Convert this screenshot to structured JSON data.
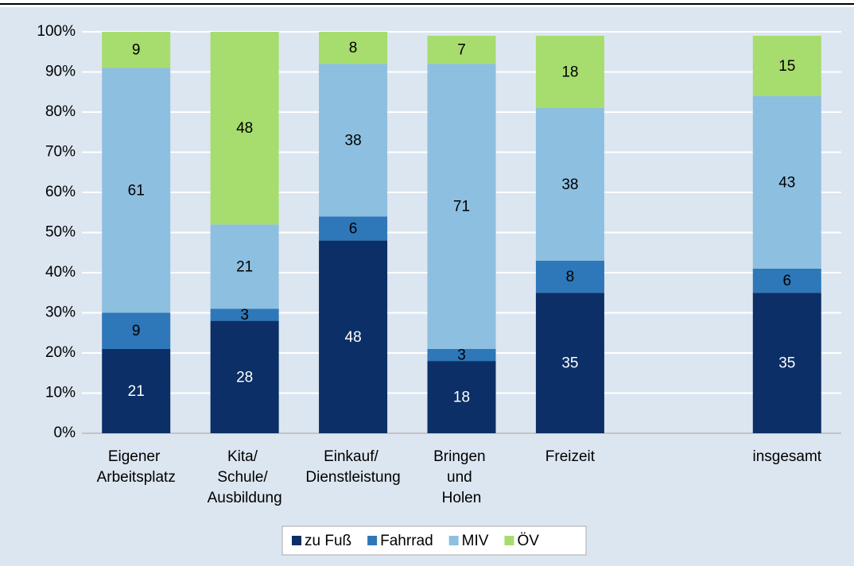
{
  "chart_data": {
    "type": "stacked_bar",
    "categories": [
      "Eigener Arbeitsplatz",
      "Kita/ Schule/ Ausbildung",
      "Einkauf/ Dienstleistung",
      "Bringen und Holen",
      "Freizeit",
      null,
      "insgesamt"
    ],
    "series": [
      {
        "name": "zu Fuß",
        "color": "#0b2f66",
        "values": [
          21,
          28,
          48,
          18,
          35,
          null,
          35
        ]
      },
      {
        "name": "Fahrrad",
        "color": "#2e77b8",
        "values": [
          9,
          3,
          6,
          3,
          8,
          null,
          6
        ]
      },
      {
        "name": "MIV",
        "color": "#8dbfe0",
        "values": [
          61,
          21,
          38,
          71,
          38,
          null,
          43
        ]
      },
      {
        "name": "ÖV",
        "color": "#a7dc6e",
        "values": [
          9,
          48,
          8,
          7,
          18,
          null,
          15
        ]
      }
    ],
    "ylim": [
      0,
      100
    ],
    "yticks": [
      {
        "value": 0,
        "label": "0%"
      },
      {
        "value": 10,
        "label": "10%"
      },
      {
        "value": 20,
        "label": "20%"
      },
      {
        "value": 30,
        "label": "30%"
      },
      {
        "value": 40,
        "label": "40%"
      },
      {
        "value": 50,
        "label": "50%"
      },
      {
        "value": 60,
        "label": "60%"
      },
      {
        "value": 70,
        "label": "70%"
      },
      {
        "value": 80,
        "label": "80%"
      },
      {
        "value": 90,
        "label": "90%"
      },
      {
        "value": 100,
        "label": "100%"
      }
    ],
    "grid": true,
    "legend": "bottom"
  }
}
